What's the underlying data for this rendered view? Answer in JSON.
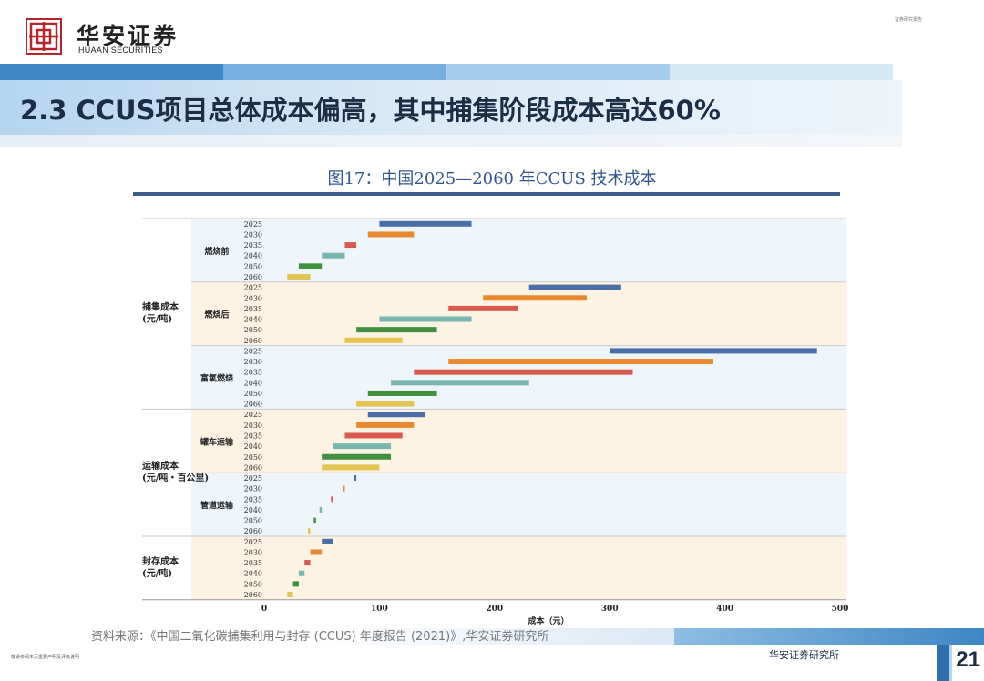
{
  "header": {
    "logo_text_cn": "华安证券",
    "logo_text_en": "HUAAN SECURITIES",
    "doc_type": "证券研究报告"
  },
  "slide": {
    "title": "2.3 CCUS项目总体成本偏高，其中捕集阶段成本高达60%"
  },
  "figure": {
    "title": "图17：中国2025—2060 年CCUS 技术成本"
  },
  "chart_data": {
    "type": "bar",
    "orientation": "horizontal-range",
    "title": "图17：中国2025—2060 年CCUS 技术成本",
    "xlabel": "成本（元）",
    "xlim": [
      0,
      500
    ],
    "xticks": [
      0,
      100,
      200,
      300,
      400,
      500
    ],
    "years": [
      "2025",
      "2030",
      "2035",
      "2040",
      "2050",
      "2060"
    ],
    "year_colors": {
      "2025": "#4a6fa8",
      "2030": "#e9892f",
      "2035": "#d85a4f",
      "2040": "#7ab6b0",
      "2050": "#3f913f",
      "2060": "#e4c551"
    },
    "sections": [
      {
        "label": [
          "捕集成本",
          "(元/吨)"
        ],
        "groups": [
          0,
          1,
          2
        ]
      },
      {
        "label": [
          "运输成本",
          "(元/吨・百公里)"
        ],
        "groups": [
          3,
          4
        ]
      },
      {
        "label": [
          "封存成本",
          "(元/吨)"
        ],
        "groups": [
          5
        ]
      }
    ],
    "groups": [
      {
        "label": "燃烧前",
        "fill": "#eef6fb",
        "ranges": [
          [
            100,
            180
          ],
          [
            90,
            130
          ],
          [
            70,
            80
          ],
          [
            50,
            70
          ],
          [
            30,
            50
          ],
          [
            20,
            40
          ]
        ]
      },
      {
        "label": "燃烧后",
        "fill": "#fdf3e3",
        "ranges": [
          [
            230,
            310
          ],
          [
            190,
            280
          ],
          [
            160,
            220
          ],
          [
            100,
            180
          ],
          [
            80,
            150
          ],
          [
            70,
            120
          ]
        ]
      },
      {
        "label": "富氧燃烧",
        "fill": "#eef6fb",
        "ranges": [
          [
            300,
            480
          ],
          [
            160,
            390
          ],
          [
            130,
            320
          ],
          [
            110,
            230
          ],
          [
            90,
            150
          ],
          [
            80,
            130
          ]
        ]
      },
      {
        "label": "罐车运输",
        "fill": "#fdf3e3",
        "ranges": [
          [
            90,
            140
          ],
          [
            80,
            130
          ],
          [
            70,
            120
          ],
          [
            60,
            110
          ],
          [
            50,
            110
          ],
          [
            50,
            100
          ]
        ]
      },
      {
        "label": "管道运输",
        "fill": "#eef6fb",
        "ranges": [
          [
            78,
            80
          ],
          [
            68,
            70
          ],
          [
            58,
            60
          ],
          [
            48,
            50
          ],
          [
            43,
            45
          ],
          [
            38,
            40
          ]
        ]
      },
      {
        "label": "",
        "fill": "#fdf3e3",
        "ranges": [
          [
            50,
            60
          ],
          [
            40,
            50
          ],
          [
            35,
            40
          ],
          [
            30,
            35
          ],
          [
            25,
            30
          ],
          [
            20,
            25
          ]
        ]
      }
    ]
  },
  "source": {
    "text": "资料来源：《中国二氧化碳捕集利用与封存 (CCUS) 年度报告 (2021)》,华安证券研究所"
  },
  "footer": {
    "disclaimer": "敬请参阅末页重要声明及评级说明",
    "firm": "华安证券研究所",
    "page": "21"
  }
}
